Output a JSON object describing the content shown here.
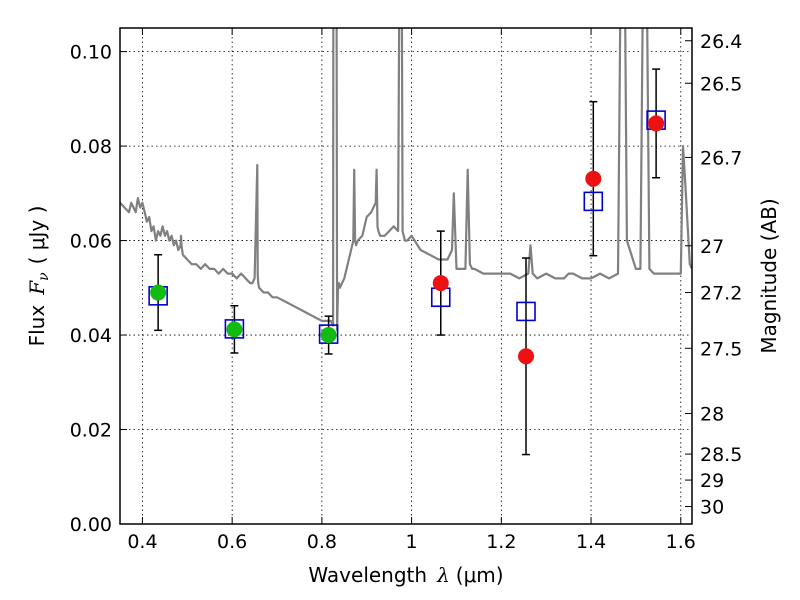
{
  "chart_data": {
    "type": "scatter",
    "xlabel_text": "Wavelength",
    "xlabel_symbol": "λ",
    "xlabel_unit": "(μm)",
    "ylabel_text": "Flux",
    "ylabel_symbol": "F",
    "ylabel_subscript": "ν",
    "ylabel_unit": "( μJy )",
    "y2label": "Magnitude (AB)",
    "xlim": [
      0.35,
      1.625
    ],
    "ylim": [
      0.0,
      0.105
    ],
    "x_ticks": [
      0.4,
      0.6,
      0.8,
      1.0,
      1.2,
      1.4,
      1.6
    ],
    "x_tick_labels": [
      "0.4",
      "0.6",
      "0.8",
      "1",
      "1.2",
      "1.4",
      "1.6"
    ],
    "y_ticks": [
      0.0,
      0.02,
      0.04,
      0.06,
      0.08,
      0.1
    ],
    "y_tick_labels": [
      "0.00",
      "0.02",
      "0.04",
      "0.06",
      "0.08",
      "0.10"
    ],
    "y2_ticks": [
      {
        "label": "26.4",
        "flux": 0.1023
      },
      {
        "label": "26.5",
        "flux": 0.0933
      },
      {
        "label": "26.7",
        "flux": 0.0776
      },
      {
        "label": "27",
        "flux": 0.0589
      },
      {
        "label": "27.2",
        "flux": 0.049
      },
      {
        "label": "27.5",
        "flux": 0.0372
      },
      {
        "label": "28",
        "flux": 0.0234
      },
      {
        "label": "28.5",
        "flux": 0.0148
      },
      {
        "label": "29",
        "flux": 0.0093
      },
      {
        "label": "30",
        "flux": 0.0037
      }
    ],
    "grid": true,
    "series": [
      {
        "kind": "model_spectrum",
        "color": "#808080",
        "x": [
          0.35,
          0.36,
          0.37,
          0.375,
          0.38,
          0.385,
          0.39,
          0.395,
          0.4,
          0.405,
          0.41,
          0.415,
          0.42,
          0.425,
          0.43,
          0.435,
          0.44,
          0.445,
          0.45,
          0.455,
          0.46,
          0.465,
          0.47,
          0.475,
          0.48,
          0.485,
          0.486,
          0.487,
          0.49,
          0.5,
          0.51,
          0.52,
          0.53,
          0.54,
          0.55,
          0.56,
          0.57,
          0.58,
          0.59,
          0.6,
          0.61,
          0.62,
          0.63,
          0.64,
          0.645,
          0.65,
          0.656,
          0.657,
          0.658,
          0.66,
          0.67,
          0.68,
          0.69,
          0.7,
          0.72,
          0.74,
          0.76,
          0.78,
          0.8,
          0.81,
          0.82,
          0.825,
          0.826,
          0.83,
          0.832,
          0.834,
          0.836,
          0.838,
          0.84,
          0.85,
          0.86,
          0.87,
          0.872,
          0.874,
          0.876,
          0.88,
          0.89,
          0.9,
          0.91,
          0.92,
          0.922,
          0.924,
          0.926,
          0.93,
          0.94,
          0.95,
          0.96,
          0.97,
          0.975,
          0.978,
          0.98,
          0.985,
          0.99,
          1.0,
          1.02,
          1.04,
          1.06,
          1.08,
          1.09,
          1.094,
          1.1,
          1.12,
          1.125,
          1.13,
          1.135,
          1.14,
          1.16,
          1.18,
          1.2,
          1.22,
          1.24,
          1.26,
          1.265,
          1.27,
          1.28,
          1.3,
          1.32,
          1.34,
          1.35,
          1.36,
          1.38,
          1.4,
          1.42,
          1.44,
          1.46,
          1.47,
          1.475,
          1.48,
          1.5,
          1.51,
          1.52,
          1.53,
          1.54,
          1.56,
          1.58,
          1.6,
          1.605,
          1.61,
          1.62,
          1.625
        ],
        "y": [
          0.068,
          0.067,
          0.066,
          0.068,
          0.067,
          0.066,
          0.069,
          0.067,
          0.068,
          0.066,
          0.064,
          0.065,
          0.062,
          0.063,
          0.06,
          0.062,
          0.061,
          0.063,
          0.061,
          0.062,
          0.06,
          0.061,
          0.059,
          0.06,
          0.058,
          0.059,
          0.061,
          0.059,
          0.057,
          0.056,
          0.055,
          0.055,
          0.054,
          0.055,
          0.054,
          0.054,
          0.053,
          0.054,
          0.053,
          0.053,
          0.052,
          0.053,
          0.052,
          0.051,
          0.051,
          0.052,
          0.076,
          0.053,
          0.051,
          0.05,
          0.049,
          0.049,
          0.048,
          0.048,
          0.047,
          0.046,
          0.045,
          0.044,
          0.043,
          0.043,
          0.043,
          0.042,
          0.16,
          0.12,
          0.16,
          0.041,
          0.05,
          0.051,
          0.05,
          0.052,
          0.056,
          0.06,
          0.075,
          0.06,
          0.059,
          0.06,
          0.061,
          0.065,
          0.066,
          0.068,
          0.075,
          0.063,
          0.062,
          0.061,
          0.061,
          0.062,
          0.063,
          0.062,
          0.16,
          0.12,
          0.062,
          0.06,
          0.06,
          0.061,
          0.058,
          0.057,
          0.056,
          0.056,
          0.058,
          0.07,
          0.054,
          0.054,
          0.075,
          0.055,
          0.054,
          0.054,
          0.053,
          0.053,
          0.053,
          0.053,
          0.052,
          0.053,
          0.059,
          0.053,
          0.052,
          0.053,
          0.052,
          0.052,
          0.053,
          0.053,
          0.052,
          0.052,
          0.053,
          0.052,
          0.053,
          0.16,
          0.12,
          0.06,
          0.054,
          0.054,
          0.16,
          0.054,
          0.053,
          0.053,
          0.053,
          0.053,
          0.08,
          0.072,
          0.055,
          0.054
        ]
      },
      {
        "kind": "model_points",
        "marker": "open-square",
        "color": "#0000cc",
        "x": [
          0.435,
          0.605,
          0.815,
          1.065,
          1.255,
          1.405,
          1.545
        ],
        "y": [
          0.0483,
          0.0413,
          0.0402,
          0.048,
          0.045,
          0.0683,
          0.0855
        ]
      },
      {
        "kind": "observed",
        "marker": "filled-circle",
        "color": "#11bb11",
        "x": [
          0.435,
          0.605,
          0.815
        ],
        "y": [
          0.049,
          0.0412,
          0.04
        ],
        "err": [
          0.008,
          0.005,
          0.004
        ]
      },
      {
        "kind": "observed",
        "marker": "filled-circle",
        "color": "#ee1111",
        "x": [
          1.065,
          1.255,
          1.405,
          1.545
        ],
        "y": [
          0.051,
          0.0355,
          0.0731,
          0.0848
        ],
        "err": [
          0.011,
          0.0208,
          0.0163,
          0.0115
        ]
      }
    ]
  }
}
